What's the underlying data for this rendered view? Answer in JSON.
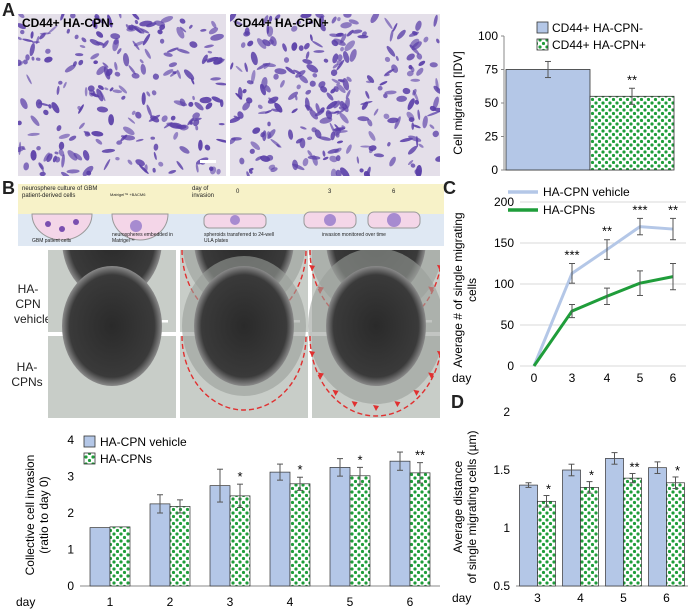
{
  "panels": {
    "A": {
      "letter": "A",
      "micro_labels": [
        "CD44+ HA-CPN-",
        "CD44+ HA-CPN+"
      ]
    },
    "B": {
      "letter": "B",
      "schematic": {
        "steps": [
          "neurosphere culture of GBM patient-derived cells",
          "GBM patient cells",
          "neurospheres embedded in Matrigel™",
          "spheroids transferred to 24-well ULA plates",
          "invasion monitored over time"
        ],
        "day_header": "day of invasion",
        "day_numbers": [
          "0",
          "3",
          "6"
        ],
        "inset_text": "Matrigel™ +BACM6"
      },
      "row_labels": [
        [
          "HA-CPN",
          "vehicle"
        ],
        [
          "HA-CPNs"
        ]
      ]
    },
    "C": {
      "letter": "C"
    },
    "D": {
      "letter": "D"
    }
  },
  "colors": {
    "blue_bar": "#b4c7e7",
    "green_pattern": "#1f9d3a",
    "light_blue_line": "#b4c7e7",
    "green_line": "#1f9d3a",
    "micro_bg": "#e4dfe9",
    "cell_purple": "#5a3fa8",
    "dashed_red": "#e03030"
  },
  "chart_data": [
    {
      "id": "A",
      "type": "bar",
      "categories": [
        "CD44+ HA-CPN-",
        "CD44+ HA-CPN+"
      ],
      "values": [
        75,
        55
      ],
      "errors": [
        6,
        6
      ],
      "significance": [
        "",
        "**"
      ],
      "ylabel": "Cell migration [IDV]",
      "ylim": [
        0,
        100
      ],
      "yticks": [
        "0",
        "25",
        "50",
        "75",
        "100"
      ],
      "legend": [
        "CD44+ HA-CPN-",
        "CD44+ HA-CPN+"
      ],
      "legend_placement": "top"
    },
    {
      "id": "B",
      "type": "bar",
      "categories": [
        "1",
        "2",
        "3",
        "4",
        "5",
        "6"
      ],
      "x_axis_label": "day",
      "series": [
        {
          "name": "HA-CPN vehicle",
          "values": [
            1.6,
            2.25,
            2.75,
            3.12,
            3.25,
            3.42
          ],
          "errors": [
            0,
            0.25,
            0.45,
            0.22,
            0.24,
            0.25
          ]
        },
        {
          "name": "HA-CPNs",
          "values": [
            1.62,
            2.18,
            2.47,
            2.8,
            3.02,
            3.1
          ],
          "errors": [
            0,
            0.18,
            0.32,
            0.18,
            0.23,
            0.28
          ]
        }
      ],
      "significance": [
        "",
        "",
        "*",
        "*",
        "*",
        "**"
      ],
      "ylabel": "Collective cell invasion (ratio to day 0)",
      "ylim": [
        0,
        4
      ],
      "yticks": [
        "0",
        "1",
        "2",
        "3",
        "4"
      ],
      "legend_placement": "top-left"
    },
    {
      "id": "C",
      "type": "line",
      "x": [
        0,
        3,
        4,
        5,
        6
      ],
      "x_axis_label": "day",
      "series": [
        {
          "name": "HA-CPN vehicle",
          "values": [
            0,
            113,
            142,
            170,
            167
          ],
          "errors": [
            0,
            12,
            12,
            10,
            13
          ]
        },
        {
          "name": "HA-CPNs",
          "values": [
            0,
            67,
            85,
            101,
            109
          ],
          "errors": [
            0,
            8,
            10,
            15,
            16
          ]
        }
      ],
      "significance": [
        "",
        "***",
        "**",
        "***",
        "**"
      ],
      "ylabel": "Average # of single migrating cells",
      "ylim": [
        0,
        200
      ],
      "yticks": [
        "0",
        "50",
        "100",
        "150",
        "200"
      ],
      "legend_placement": "top"
    },
    {
      "id": "D",
      "type": "bar",
      "categories": [
        "3",
        "4",
        "5",
        "6"
      ],
      "x_axis_label": "day",
      "series": [
        {
          "name": "HA-CPN vehicle",
          "values": [
            1.37,
            1.5,
            1.6,
            1.52
          ],
          "errors": [
            0.02,
            0.05,
            0.05,
            0.05
          ]
        },
        {
          "name": "HA-CPNs",
          "values": [
            1.23,
            1.35,
            1.43,
            1.39
          ],
          "errors": [
            0.05,
            0.05,
            0.04,
            0.05
          ]
        }
      ],
      "significance": [
        "*",
        "*",
        "**",
        "*"
      ],
      "ylabel": "Average distance of single migrating cells (µm)",
      "ylim": [
        0.5,
        2
      ],
      "yticks": [
        "0.5",
        "1",
        "1.5",
        "2"
      ]
    }
  ]
}
